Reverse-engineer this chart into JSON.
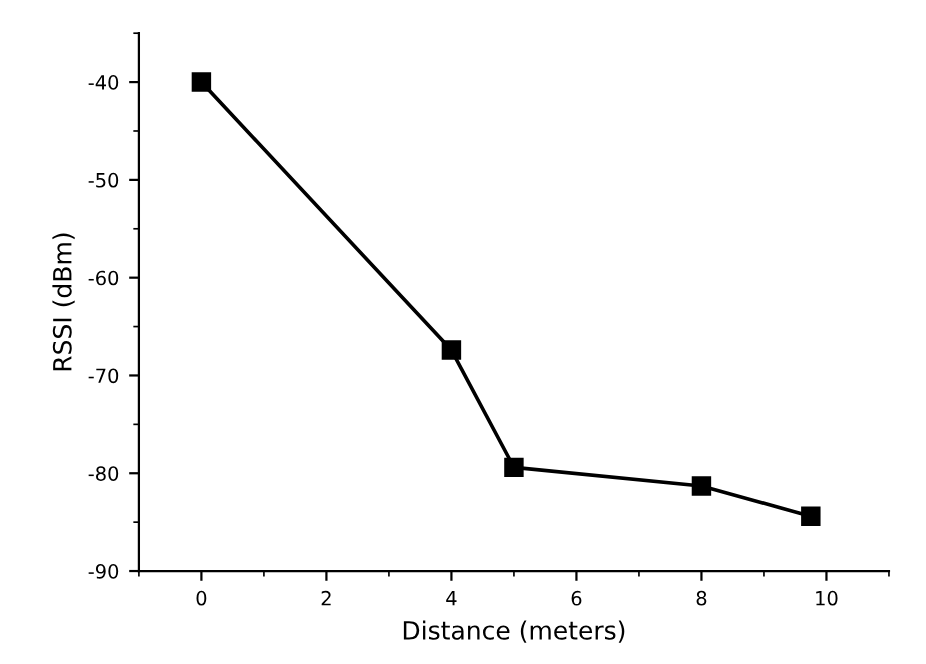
{
  "chart_data": {
    "type": "line",
    "xlabel": "Distance (meters)",
    "ylabel": "RSSI (dBm)",
    "x": [
      0,
      4,
      5,
      8,
      9.75
    ],
    "series": [
      {
        "color": "#000000",
        "values": [
          -40,
          -67.4,
          -79.4,
          -81.3,
          -84.4
        ]
      }
    ],
    "xlim": [
      -1,
      11
    ],
    "xticks": [
      0,
      2,
      4,
      6,
      8,
      10
    ],
    "ylim": [
      -90,
      -35
    ],
    "yticks": [
      {
        "value": -90,
        "label": "-90"
      },
      {
        "value": -80,
        "label": "-80"
      },
      {
        "value": -70,
        "label": "-70"
      },
      {
        "value": -60,
        "label": "-60"
      },
      {
        "value": -50,
        "label": "-50"
      },
      {
        "value": -40,
        "label": "-40"
      }
    ],
    "marker": "square",
    "line_style": "solid",
    "grid": false,
    "legend": false
  }
}
